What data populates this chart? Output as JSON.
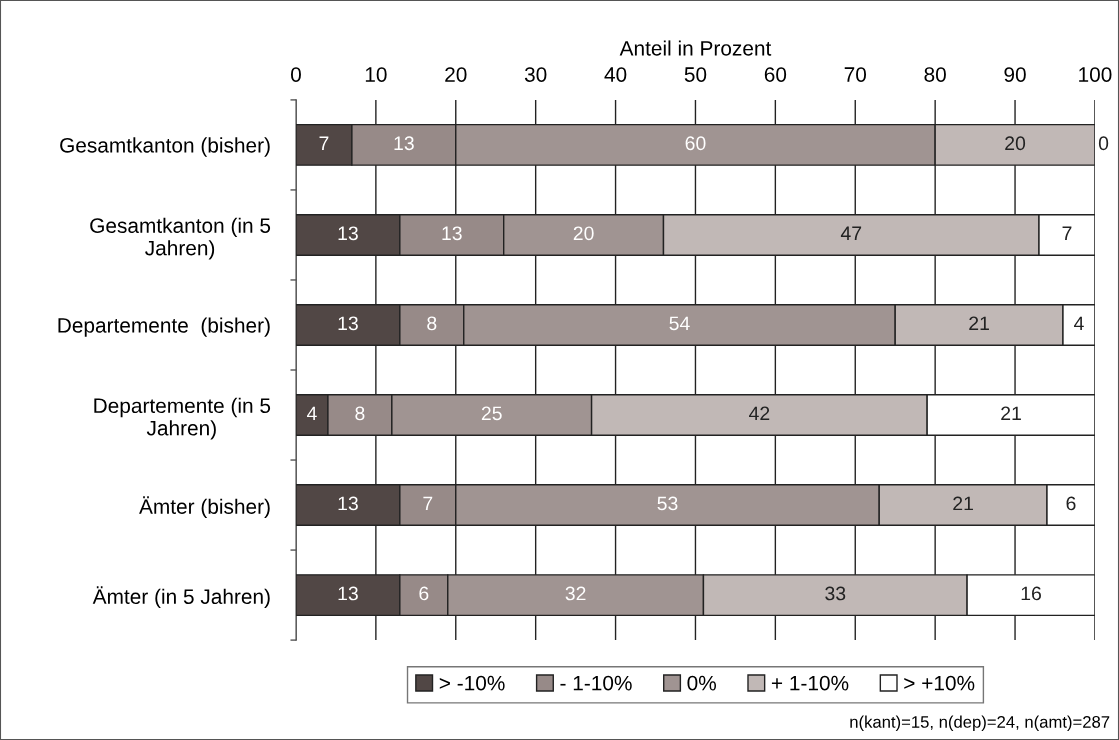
{
  "chart_data": {
    "type": "bar",
    "orientation": "horizontal",
    "stacked": true,
    "xlabel": "Anteil in Prozent",
    "categories": [
      "Gesamtkanton (bisher)",
      "Gesamtkanton (in 5\nJahren)",
      "Departemente  (bisher)",
      "Departemente (in 5\nJahren)",
      "Ämter (bisher)",
      "Ämter (in 5 Jahren)"
    ],
    "series": [
      {
        "name": "> -10%",
        "color": "#514745",
        "values": [
          7,
          13,
          13,
          4,
          13,
          13
        ]
      },
      {
        "name": "- 1-10%",
        "color": "#978a88",
        "values": [
          13,
          13,
          8,
          8,
          7,
          6
        ]
      },
      {
        "name": "0%",
        "color": "#a09492",
        "values": [
          60,
          20,
          54,
          25,
          53,
          32
        ]
      },
      {
        "name": "+ 1-10%",
        "color": "#c1b8b6",
        "values": [
          20,
          47,
          21,
          42,
          21,
          33
        ]
      },
      {
        "name": "> +10%",
        "color": "#ffffff",
        "values": [
          0,
          7,
          4,
          21,
          6,
          16
        ]
      }
    ],
    "xlim": [
      0,
      100
    ],
    "xticks": [
      0,
      10,
      20,
      30,
      40,
      50,
      60,
      70,
      80,
      90,
      100
    ],
    "grid": "x",
    "legend": "bottom",
    "data_labels": true,
    "annotations": [
      "n(kant)=15, n(dep)=24, n(amt)=287"
    ]
  }
}
